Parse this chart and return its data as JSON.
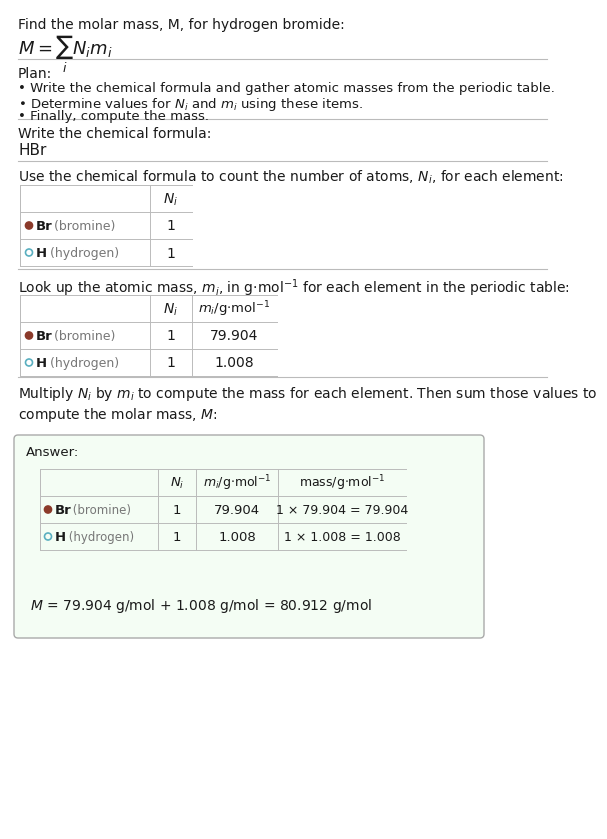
{
  "title": "Find the molar mass, M, for hydrogen bromide:",
  "formula": "$M = \\sum_i N_i m_i$",
  "plan_header": "Plan:",
  "plan_lines": [
    "• Write the chemical formula and gather atomic masses from the periodic table.",
    "• Determine values for $N_i$ and $m_i$ using these items.",
    "• Finally, compute the mass."
  ],
  "step1_header": "Write the chemical formula:",
  "step1_value": "HBr",
  "step2_header": "Use the chemical formula to count the number of atoms, $N_i$, for each element:",
  "step3_header": "Look up the atomic mass, $m_i$, in g$\\cdot$mol$^{-1}$ for each element in the periodic table:",
  "step4_header": "Multiply $N_i$ by $m_i$ to compute the mass for each element. Then sum those values to\ncompute the molar mass, $M$:",
  "elements": [
    {
      "symbol": "Br",
      "name": "bromine",
      "N": "1",
      "m": "79.904",
      "mass": "1 × 79.904 = 79.904",
      "dot_filled": true,
      "dot_color": "#8B3A2A"
    },
    {
      "symbol": "H",
      "name": "hydrogen",
      "N": "1",
      "m": "1.008",
      "mass": "1 × 1.008 = 1.008",
      "dot_filled": false,
      "dot_color": "#5AAFC0"
    }
  ],
  "answer_label": "Answer:",
  "final_eq": "$M$ = 79.904 g/mol + 1.008 g/mol = 80.912 g/mol",
  "bg": "#ffffff",
  "ans_bg": "#f4fdf4",
  "line_color": "#bbbbbb",
  "text_color": "#1a1a1a",
  "gray_color": "#777777"
}
